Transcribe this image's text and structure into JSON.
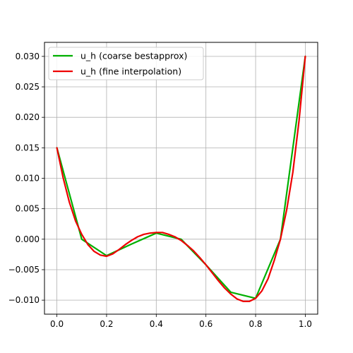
{
  "chart_data": {
    "type": "line",
    "title": "",
    "xlabel": "",
    "ylabel": "",
    "xlim": [
      -0.05,
      1.05
    ],
    "ylim": [
      -0.0123,
      0.0323
    ],
    "grid": true,
    "legend_position": "top-left",
    "xticks": [
      {
        "value": 0.0,
        "label": "0.0"
      },
      {
        "value": 0.2,
        "label": "0.2"
      },
      {
        "value": 0.4,
        "label": "0.4"
      },
      {
        "value": 0.6,
        "label": "0.6"
      },
      {
        "value": 0.8,
        "label": "0.8"
      },
      {
        "value": 1.0,
        "label": "1.0"
      }
    ],
    "yticks": [
      {
        "value": -0.01,
        "label": "−0.010"
      },
      {
        "value": -0.005,
        "label": "−0.005"
      },
      {
        "value": 0.0,
        "label": "0.000"
      },
      {
        "value": 0.005,
        "label": "0.005"
      },
      {
        "value": 0.01,
        "label": "0.010"
      },
      {
        "value": 0.015,
        "label": "0.015"
      },
      {
        "value": 0.02,
        "label": "0.020"
      },
      {
        "value": 0.025,
        "label": "0.025"
      },
      {
        "value": 0.03,
        "label": "0.030"
      }
    ],
    "series": [
      {
        "name": "u_h (coarse bestapprox)",
        "color": "#00b000",
        "x": [
          0.0,
          0.1,
          0.2,
          0.3,
          0.4,
          0.5,
          0.6,
          0.7,
          0.8,
          0.9,
          1.0
        ],
        "y": [
          0.015,
          0.0,
          -0.0027,
          -0.0008,
          0.001,
          0.0,
          -0.0042,
          -0.0087,
          -0.0097,
          0.0,
          0.03
        ]
      },
      {
        "name": "u_h (fine interpolation)",
        "color": "#ee0000",
        "x": [
          0.0,
          0.025,
          0.05,
          0.075,
          0.1,
          0.125,
          0.15,
          0.175,
          0.2,
          0.225,
          0.25,
          0.275,
          0.3,
          0.325,
          0.35,
          0.375,
          0.4,
          0.425,
          0.45,
          0.475,
          0.5,
          0.525,
          0.55,
          0.575,
          0.6,
          0.625,
          0.65,
          0.675,
          0.7,
          0.725,
          0.75,
          0.775,
          0.8,
          0.825,
          0.85,
          0.875,
          0.9,
          0.925,
          0.95,
          0.975,
          1.0
        ],
        "y": [
          0.015,
          0.0101,
          0.0061,
          0.003,
          0.0008,
          -0.0009,
          -0.002,
          -0.0026,
          -0.0028,
          -0.0024,
          -0.0017,
          -0.0009,
          -0.0002,
          0.0004,
          0.0008,
          0.001,
          0.0011,
          0.0011,
          0.0008,
          0.0004,
          -0.0002,
          -0.001,
          -0.0019,
          -0.003,
          -0.0042,
          -0.0055,
          -0.0068,
          -0.008,
          -0.009,
          -0.0098,
          -0.0102,
          -0.0102,
          -0.0097,
          -0.0085,
          -0.0065,
          -0.0035,
          0.0,
          0.0048,
          0.011,
          0.0195,
          0.03
        ]
      }
    ]
  }
}
